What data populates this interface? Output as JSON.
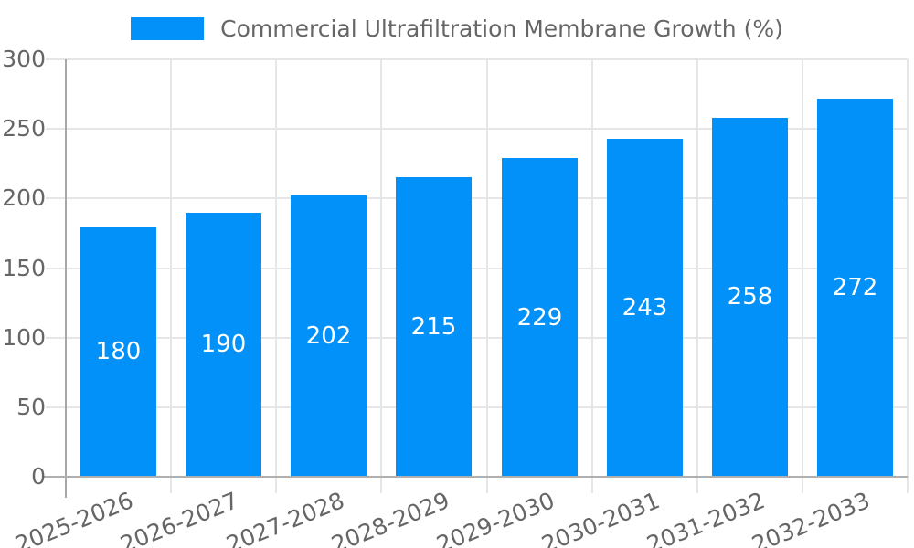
{
  "legend": {
    "label": "Commercial Ultrafiltration Membrane Growth (%)"
  },
  "chart_data": {
    "type": "bar",
    "title": "Commercial Ultrafiltration Membrane Growth (%)",
    "categories": [
      "2025-2026",
      "2026-2027",
      "2027-2028",
      "2028-2029",
      "2029-2030",
      "2030-2031",
      "2031-2032",
      "2032-2033"
    ],
    "values": [
      180,
      190,
      202,
      215,
      229,
      243,
      258,
      272
    ],
    "value_labels": [
      "180",
      "190",
      "202",
      "215",
      "229",
      "243",
      "258",
      "272"
    ],
    "yticks": [
      0,
      50,
      100,
      150,
      200,
      250,
      300
    ],
    "ylim": [
      0,
      300
    ],
    "xlabel": "",
    "ylabel": "",
    "grid": true,
    "legend_position": "top-center",
    "value_label_position": "inside-center",
    "xtick_rotation_deg": -22,
    "colors": {
      "bar": "#0291f8",
      "tick_text": "#666666",
      "value_text": "#ffffff",
      "gridline": "#e6e6e6",
      "axis_line": "#b0b0b0",
      "y_axis_line": "#a8a8a8"
    }
  }
}
